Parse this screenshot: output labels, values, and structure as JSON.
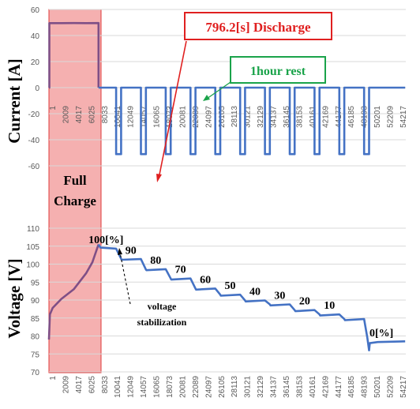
{
  "colors": {
    "series": "#4472C4",
    "charge_series": "#7F4F86",
    "highlight_fill": "#F4A7A7",
    "highlight_stroke": "#E03A3A",
    "discharge_callout": "#E02020",
    "rest_callout": "#1AA34A",
    "gridline": "#D9D9D9"
  },
  "highlight": {
    "label_line1": "Full",
    "label_line2": "Charge"
  },
  "charts": [
    {
      "id": "current",
      "type": "line",
      "ylabel": "Current [A]",
      "ylim": [
        -60,
        60
      ],
      "yticks": [
        -60,
        -40,
        -20,
        0,
        20,
        40,
        60
      ],
      "xticks": [
        "1",
        "2009",
        "4017",
        "6025",
        "8033",
        "10041",
        "12049",
        "14057",
        "16065",
        "18073",
        "20081",
        "22089",
        "24097",
        "26105",
        "28113",
        "30121",
        "32129",
        "34137",
        "36145",
        "38153",
        "40161",
        "42169",
        "44177",
        "46185",
        "48193",
        "50201",
        "52209",
        "54217"
      ],
      "xrange": [
        1,
        57500
      ],
      "segments": [
        {
          "name": "charge",
          "color_key": "charge_series",
          "points": [
            [
              1,
              0
            ],
            [
              60,
              0
            ],
            [
              61,
              49.5
            ],
            [
              2000,
              49.5
            ],
            [
              4000,
              49.6
            ],
            [
              6000,
              49.5
            ],
            [
              7985,
              49.6
            ],
            [
              7986,
              0
            ]
          ]
        },
        {
          "name": "discharge-rest",
          "color_key": "series",
          "points": [
            [
              7986,
              0
            ],
            [
              10826,
              0
            ],
            [
              10826,
              -51
            ],
            [
              11622,
              -51
            ],
            [
              11622,
              0
            ],
            [
              14822,
              0
            ],
            [
              14822,
              -51
            ],
            [
              15618,
              -51
            ],
            [
              15618,
              0
            ],
            [
              18818,
              0
            ],
            [
              18818,
              -51
            ],
            [
              19614,
              -51
            ],
            [
              19614,
              0
            ],
            [
              22814,
              0
            ],
            [
              22814,
              -51
            ],
            [
              23610,
              -51
            ],
            [
              23610,
              0
            ],
            [
              26810,
              0
            ],
            [
              26810,
              -51
            ],
            [
              27606,
              -51
            ],
            [
              27606,
              0
            ],
            [
              30806,
              0
            ],
            [
              30806,
              -51
            ],
            [
              31602,
              -51
            ],
            [
              31602,
              0
            ],
            [
              34802,
              0
            ],
            [
              34802,
              -51
            ],
            [
              35598,
              -51
            ],
            [
              35598,
              0
            ],
            [
              38798,
              0
            ],
            [
              38798,
              -51
            ],
            [
              39594,
              -51
            ],
            [
              39594,
              0
            ],
            [
              42794,
              0
            ],
            [
              42794,
              -51
            ],
            [
              43590,
              -51
            ],
            [
              43590,
              0
            ],
            [
              46790,
              0
            ],
            [
              46790,
              -51
            ],
            [
              47586,
              -51
            ],
            [
              47586,
              0
            ],
            [
              50786,
              0
            ],
            [
              50786,
              -51
            ],
            [
              51582,
              -51
            ],
            [
              51582,
              0
            ],
            [
              57400,
              0
            ]
          ]
        }
      ],
      "annotations": {
        "discharge": "796.2[s] Discharge",
        "rest": "1hour rest"
      }
    },
    {
      "id": "voltage",
      "type": "line",
      "ylabel": "Voltage [V]",
      "ylim": [
        70,
        110
      ],
      "yticks": [
        70,
        75,
        80,
        85,
        90,
        95,
        100,
        105,
        110
      ],
      "xticks": [
        "1",
        "2009",
        "4017",
        "6025",
        "8033",
        "10041",
        "12049",
        "14057",
        "16065",
        "18073",
        "20081",
        "22089",
        "24097",
        "26105",
        "28113",
        "30121",
        "32129",
        "34137",
        "36145",
        "38153",
        "40161",
        "42169",
        "44177",
        "46185",
        "48193",
        "50201",
        "52209",
        "54217"
      ],
      "xrange": [
        1,
        57500
      ],
      "segments": [
        {
          "name": "charge",
          "color_key": "charge_series",
          "points": [
            [
              1,
              79
            ],
            [
              150,
              86
            ],
            [
              600,
              87.8
            ],
            [
              2000,
              90.3
            ],
            [
              4000,
              93
            ],
            [
              6000,
              97.5
            ],
            [
              7000,
              100.5
            ],
            [
              7985,
              105.5
            ]
          ]
        },
        {
          "name": "discharge-rest",
          "color_key": "series",
          "points": [
            [
              7986,
              105.5
            ],
            [
              8300,
              104.6
            ],
            [
              10826,
              104.3
            ],
            [
              11622,
              101.5
            ],
            [
              11700,
              101.2
            ],
            [
              14822,
              101.4
            ],
            [
              15618,
              98.5
            ],
            [
              15700,
              98.3
            ],
            [
              18818,
              98.6
            ],
            [
              19614,
              96.0
            ],
            [
              19700,
              95.7
            ],
            [
              22814,
              96.0
            ],
            [
              23610,
              93.2
            ],
            [
              23700,
              92.9
            ],
            [
              26810,
              93.2
            ],
            [
              27606,
              91.5
            ],
            [
              27700,
              91.2
            ],
            [
              30806,
              91.5
            ],
            [
              31602,
              89.9
            ],
            [
              31700,
              89.6
            ],
            [
              34802,
              89.9
            ],
            [
              35598,
              88.8
            ],
            [
              35700,
              88.5
            ],
            [
              38798,
              88.8
            ],
            [
              39594,
              87.2
            ],
            [
              39700,
              86.9
            ],
            [
              42794,
              87.2
            ],
            [
              43590,
              86.0
            ],
            [
              43700,
              85.7
            ],
            [
              46790,
              86.0
            ],
            [
              47586,
              84.7
            ],
            [
              47700,
              84.4
            ],
            [
              50786,
              84.7
            ],
            [
              51300,
              79.5
            ],
            [
              51582,
              76.0
            ],
            [
              51700,
              78.0
            ],
            [
              53000,
              78.3
            ],
            [
              57400,
              78.5
            ]
          ]
        }
      ],
      "soc_labels": [
        "100[%]",
        "90",
        "80",
        "70",
        "60",
        "50",
        "40",
        "30",
        "20",
        "10",
        "0[%]"
      ],
      "annotations": {
        "stabilization_line1": "voltage",
        "stabilization_line2": "stabilization"
      }
    }
  ]
}
